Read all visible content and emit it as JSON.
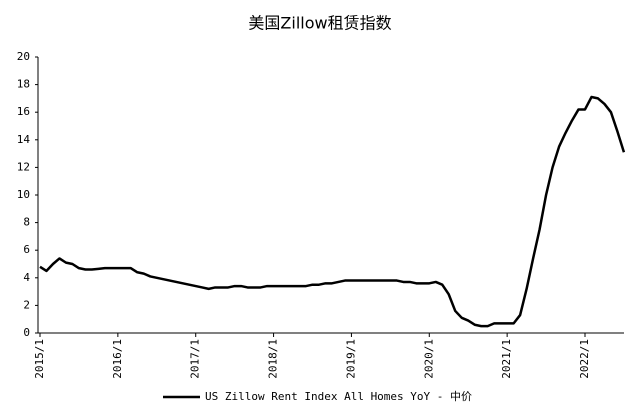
{
  "chart_data": {
    "type": "line",
    "title": "美国Zillow租赁指数",
    "categories": [
      "2015/1",
      null,
      null,
      null,
      null,
      null,
      null,
      null,
      null,
      null,
      null,
      null,
      "2016/1",
      null,
      null,
      null,
      null,
      null,
      null,
      null,
      null,
      null,
      null,
      null,
      "2017/1",
      null,
      null,
      null,
      null,
      null,
      null,
      null,
      null,
      null,
      null,
      null,
      "2018/1",
      null,
      null,
      null,
      null,
      null,
      null,
      null,
      null,
      null,
      null,
      null,
      "2019/1",
      null,
      null,
      null,
      null,
      null,
      null,
      null,
      null,
      null,
      null,
      null,
      "2020/1",
      null,
      null,
      null,
      null,
      null,
      null,
      null,
      null,
      null,
      null,
      null,
      "2021/1",
      null,
      null,
      null,
      null,
      null,
      null,
      null,
      null,
      null,
      null,
      null,
      "2022/1",
      null,
      null,
      null,
      null,
      null,
      null
    ],
    "series": [
      {
        "name": "US Zillow Rent Index All Homes YoY - 中价",
        "color": "#000000",
        "values": [
          4.8,
          4.5,
          5.0,
          5.4,
          5.1,
          5.0,
          4.7,
          4.6,
          4.6,
          4.65,
          4.7,
          4.7,
          4.7,
          4.7,
          4.7,
          4.4,
          4.3,
          4.1,
          4.0,
          3.9,
          3.8,
          3.7,
          3.6,
          3.5,
          3.4,
          3.3,
          3.2,
          3.3,
          3.3,
          3.3,
          3.4,
          3.4,
          3.3,
          3.3,
          3.3,
          3.4,
          3.4,
          3.4,
          3.4,
          3.4,
          3.4,
          3.4,
          3.5,
          3.5,
          3.6,
          3.6,
          3.7,
          3.8,
          3.8,
          3.8,
          3.8,
          3.8,
          3.8,
          3.8,
          3.8,
          3.8,
          3.7,
          3.7,
          3.6,
          3.6,
          3.6,
          3.7,
          3.5,
          2.8,
          1.6,
          1.1,
          0.9,
          0.6,
          0.5,
          0.5,
          0.7,
          0.7,
          0.7,
          0.7,
          1.3,
          3.2,
          5.4,
          7.5,
          10.0,
          12.0,
          13.5,
          14.5,
          15.4,
          16.2,
          16.2,
          17.1,
          17.0,
          16.6,
          16.0,
          14.6,
          13.1
        ]
      }
    ],
    "ylim": [
      0,
      20
    ],
    "yticks": [
      0,
      2,
      4,
      6,
      8,
      10,
      12,
      14,
      16,
      18,
      20
    ],
    "grid": false,
    "legend": "bottom"
  }
}
